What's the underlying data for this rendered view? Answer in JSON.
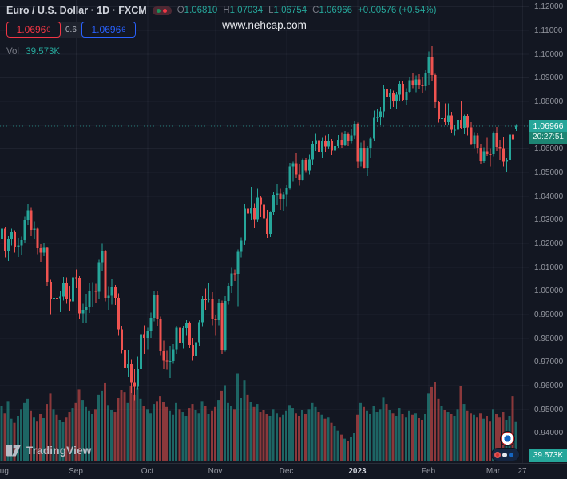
{
  "header": {
    "symbol_title": "Euro / U.S. Dollar · 1D · FXCM",
    "ohlc": {
      "o_label": "O",
      "o": "1.06810",
      "h_label": "H",
      "h": "1.07034",
      "l_label": "L",
      "l": "1.06754",
      "c_label": "C",
      "c": "1.06966",
      "change": "+0.00576 (+0.54%)"
    },
    "sell_price": "1.0696",
    "sell_sup": "0",
    "spread": "0.6",
    "buy_price": "1.0696",
    "buy_sup": "6",
    "vol_label": "Vol",
    "vol_value": "39.573K"
  },
  "watermark": "www.nehcap.com",
  "badges": {
    "last_price": "1.06966",
    "countdown": "20:27:51",
    "volume_axis": "39.573K"
  },
  "logo": {
    "text": "TradingView"
  },
  "axes": {
    "price_labels": [
      "1.12000",
      "1.11000",
      "1.10000",
      "1.09000",
      "1.08000",
      "1.07000",
      "1.06000",
      "1.05000",
      "1.04000",
      "1.03000",
      "1.02000",
      "1.01000",
      "1.00000",
      "0.99000",
      "0.98000",
      "0.97000",
      "0.96000",
      "0.95000",
      "0.94000"
    ],
    "time_labels": [
      {
        "label": "Aug",
        "index": 0
      },
      {
        "label": "Sep",
        "index": 23
      },
      {
        "label": "Oct",
        "index": 45
      },
      {
        "label": "Nov",
        "index": 66
      },
      {
        "label": "Dec",
        "index": 88
      },
      {
        "label": "2023",
        "index": 110,
        "year": true
      },
      {
        "label": "Feb",
        "index": 132
      },
      {
        "label": "Mar",
        "index": 152
      },
      {
        "label": "27",
        "index": 161
      }
    ]
  },
  "chart_data": {
    "type": "candlestick",
    "title": "Euro / U.S. Dollar, 1D, FXCM",
    "x_range": "Aug 2022 - Mar 2023",
    "ylim": [
      0.94,
      1.12
    ],
    "grid": true,
    "colors": {
      "up": "#26a69a",
      "down": "#ef5350",
      "vol_up": "rgba(38,166,154,0.55)",
      "vol_down": "rgba(239,83,80,0.55)",
      "grid": "rgba(240,243,250,0.055)",
      "bg": "#131722",
      "accent_red": "#f23645",
      "accent_blue": "#2962ff"
    },
    "candles": [
      [
        1.022,
        1.029,
        1.015,
        1.0262
      ],
      [
        1.0262,
        1.027,
        1.014,
        1.0165
      ],
      [
        1.0165,
        1.023,
        1.0125,
        1.0216
      ],
      [
        1.0216,
        1.0262,
        1.019,
        1.0246
      ],
      [
        1.0246,
        1.0254,
        1.016,
        1.0183
      ],
      [
        1.0183,
        1.0222,
        1.0142,
        1.0191
      ],
      [
        1.0191,
        1.0228,
        1.015,
        1.0212
      ],
      [
        1.0212,
        1.0312,
        1.0202,
        1.03
      ],
      [
        1.03,
        1.0368,
        1.0276,
        1.0339
      ],
      [
        1.0339,
        1.0352,
        1.023,
        1.0256
      ],
      [
        1.0256,
        1.0292,
        1.022,
        1.0261
      ],
      [
        1.0261,
        1.0268,
        1.0154,
        1.0178
      ],
      [
        1.0178,
        1.0195,
        1.0121,
        1.016
      ],
      [
        1.016,
        1.0203,
        1.0145,
        1.0181
      ],
      [
        1.0181,
        1.0184,
        1.002,
        1.0037
      ],
      [
        1.0037,
        1.0046,
        0.99,
        0.9963
      ],
      [
        0.9963,
        1.0018,
        0.9925,
        0.997
      ],
      [
        0.997,
        1.009,
        0.9945,
        0.9968
      ],
      [
        0.9968,
        1.0,
        0.991,
        0.9975
      ],
      [
        0.9975,
        1.0058,
        0.9958,
        1.0034
      ],
      [
        1.0034,
        1.0055,
        0.9945,
        0.9966
      ],
      [
        0.9966,
        1.002,
        0.9912,
        0.9954
      ],
      [
        0.9954,
        1.0078,
        0.993,
        1.0055
      ],
      [
        1.0055,
        1.009,
        1.001,
        1.0054
      ],
      [
        1.0054,
        1.006,
        0.988,
        0.9904
      ],
      [
        0.9904,
        0.9945,
        0.9863,
        0.992
      ],
      [
        0.992,
        0.9987,
        0.9864,
        0.9929
      ],
      [
        0.9929,
        1.0033,
        0.9905,
        0.9999
      ],
      [
        0.9999,
        1.0035,
        0.993,
        1.0001
      ],
      [
        1.0001,
        1.0029,
        0.995,
        0.9995
      ],
      [
        0.9995,
        1.013,
        0.9965,
        1.012
      ],
      [
        1.012,
        1.0198,
        1.0085,
        1.0167
      ],
      [
        1.0167,
        1.0172,
        0.9955,
        0.997
      ],
      [
        0.997,
        1.0018,
        0.992,
        0.9979
      ],
      [
        0.9979,
        1.005,
        0.9942,
        1.0016
      ],
      [
        1.0016,
        1.0023,
        0.994,
        0.9969
      ],
      [
        0.9969,
        0.9988,
        0.981,
        0.9836
      ],
      [
        0.9836,
        0.9852,
        0.9735,
        0.975
      ],
      [
        0.975,
        0.977,
        0.965,
        0.9673
      ],
      [
        0.9673,
        0.975,
        0.9637,
        0.969
      ],
      [
        0.969,
        0.9709,
        0.9568,
        0.9611
      ],
      [
        0.9611,
        0.967,
        0.9536,
        0.9594
      ],
      [
        0.9594,
        0.9722,
        0.9584,
        0.967
      ],
      [
        0.967,
        0.9854,
        0.9633,
        0.9817
      ],
      [
        0.9817,
        0.9853,
        0.973,
        0.9802
      ],
      [
        0.9802,
        0.9844,
        0.9752,
        0.9829
      ],
      [
        0.9829,
        0.9908,
        0.98,
        0.9885
      ],
      [
        0.9885,
        1.0,
        0.987,
        0.9984
      ],
      [
        0.9984,
        0.9999,
        0.9852,
        0.9881
      ],
      [
        0.9881,
        0.989,
        0.9726,
        0.9744
      ],
      [
        0.9744,
        0.979,
        0.967,
        0.9706
      ],
      [
        0.9706,
        0.9745,
        0.9668,
        0.9702
      ],
      [
        0.9702,
        0.9768,
        0.9632,
        0.9704
      ],
      [
        0.9704,
        0.9775,
        0.9692,
        0.9753
      ],
      [
        0.9753,
        0.9852,
        0.9731,
        0.9843
      ],
      [
        0.9843,
        0.9875,
        0.9755,
        0.9778
      ],
      [
        0.9778,
        0.9852,
        0.9756,
        0.9841
      ],
      [
        0.9841,
        0.9876,
        0.9809,
        0.9863
      ],
      [
        0.9863,
        0.987,
        0.9758,
        0.9771
      ],
      [
        0.9771,
        0.98,
        0.9705,
        0.9724
      ],
      [
        0.9724,
        0.979,
        0.9711,
        0.978
      ],
      [
        0.978,
        0.9875,
        0.9765,
        0.9867
      ],
      [
        0.9867,
        0.9976,
        0.985,
        0.9963
      ],
      [
        0.9963,
        1.0009,
        0.992,
        0.9961
      ],
      [
        0.9961,
        1.0034,
        0.9952,
        0.9965
      ],
      [
        0.9965,
        0.9994,
        0.9853,
        0.9882
      ],
      [
        0.9882,
        0.9899,
        0.981,
        0.9876
      ],
      [
        0.9876,
        0.9965,
        0.9853,
        0.995
      ],
      [
        0.995,
        0.9958,
        0.973,
        0.9748
      ],
      [
        0.9748,
        0.9976,
        0.9742,
        0.9957
      ],
      [
        0.9957,
        1.0034,
        0.9942,
        1.002
      ],
      [
        1.002,
        1.0096,
        0.999,
        1.0073
      ],
      [
        1.0073,
        1.009,
        1.004,
        1.0071
      ],
      [
        1.0071,
        1.0174,
        0.9935,
        1.0163
      ],
      [
        1.0163,
        1.0225,
        1.014,
        1.021
      ],
      [
        1.021,
        1.0364,
        1.0192,
        1.0346
      ],
      [
        1.0346,
        1.0368,
        1.027,
        1.0325
      ],
      [
        1.0325,
        1.0438,
        1.03,
        1.035
      ],
      [
        1.035,
        1.037,
        1.0264,
        1.0302
      ],
      [
        1.0302,
        1.043,
        1.029,
        1.0393
      ],
      [
        1.0393,
        1.04,
        1.031,
        1.0362
      ],
      [
        1.0362,
        1.039,
        1.0298,
        1.0305
      ],
      [
        1.0305,
        1.034,
        1.0222,
        1.0239
      ],
      [
        1.0239,
        1.0335,
        1.0226,
        1.033
      ],
      [
        1.033,
        1.0415,
        1.032,
        1.0404
      ],
      [
        1.0404,
        1.0448,
        1.036,
        1.041
      ],
      [
        1.041,
        1.043,
        1.034,
        1.0388
      ],
      [
        1.0388,
        1.0415,
        1.0338,
        1.0406
      ],
      [
        1.0406,
        1.0445,
        1.0355,
        1.0435
      ],
      [
        1.0435,
        1.0539,
        1.0427,
        1.0525
      ],
      [
        1.0525,
        1.0545,
        1.046,
        1.0537
      ],
      [
        1.0537,
        1.058,
        1.0475,
        1.049
      ],
      [
        1.049,
        1.0535,
        1.0443,
        1.0469
      ],
      [
        1.0469,
        1.0558,
        1.0464,
        1.0551
      ],
      [
        1.0551,
        1.056,
        1.0498,
        1.0507
      ],
      [
        1.0507,
        1.0575,
        1.049,
        1.0555
      ],
      [
        1.0555,
        1.063,
        1.053,
        1.062
      ],
      [
        1.062,
        1.0662,
        1.059,
        1.0635
      ],
      [
        1.0635,
        1.0653,
        1.0575,
        1.0583
      ],
      [
        1.0583,
        1.0645,
        1.056,
        1.0632
      ],
      [
        1.0632,
        1.0655,
        1.0585,
        1.0608
      ],
      [
        1.0608,
        1.066,
        1.0596,
        1.0633
      ],
      [
        1.0633,
        1.064,
        1.0573,
        1.0592
      ],
      [
        1.0592,
        1.0625,
        1.0575,
        1.061
      ],
      [
        1.061,
        1.0658,
        1.0602,
        1.0637
      ],
      [
        1.0637,
        1.067,
        1.0604,
        1.0613
      ],
      [
        1.0613,
        1.0674,
        1.061,
        1.0661
      ],
      [
        1.0661,
        1.067,
        1.061,
        1.063
      ],
      [
        1.063,
        1.0682,
        1.0622,
        1.0655
      ],
      [
        1.0655,
        1.0715,
        1.064,
        1.0705
      ],
      [
        1.0705,
        1.071,
        1.0519,
        1.0545
      ],
      [
        1.0545,
        1.0625,
        1.0525,
        1.0603
      ],
      [
        1.0603,
        1.0635,
        1.0515,
        1.052
      ],
      [
        1.052,
        1.061,
        1.0483,
        1.0601
      ],
      [
        1.0601,
        1.065,
        1.056,
        1.0643
      ],
      [
        1.0643,
        1.076,
        1.0632,
        1.073
      ],
      [
        1.073,
        1.0768,
        1.0711,
        1.0734
      ],
      [
        1.0734,
        1.0775,
        1.0698,
        1.0756
      ],
      [
        1.0756,
        1.0868,
        1.073,
        1.0853
      ],
      [
        1.0853,
        1.0873,
        1.078,
        1.0818
      ],
      [
        1.0818,
        1.085,
        1.0765,
        1.0832
      ],
      [
        1.0832,
        1.0845,
        1.0775,
        1.0799
      ],
      [
        1.0799,
        1.084,
        1.0766,
        1.0828
      ],
      [
        1.0828,
        1.0887,
        1.08,
        1.0873
      ],
      [
        1.0873,
        1.0885,
        1.08,
        1.0805
      ],
      [
        1.0805,
        1.0855,
        1.0785,
        1.084
      ],
      [
        1.084,
        1.09,
        1.0835,
        1.0889
      ],
      [
        1.0889,
        1.092,
        1.0855,
        1.0867
      ],
      [
        1.0867,
        1.0909,
        1.0838,
        1.0891
      ],
      [
        1.0891,
        1.0913,
        1.085,
        1.0868
      ],
      [
        1.0868,
        1.09,
        1.0835,
        1.0863
      ],
      [
        1.0863,
        1.093,
        1.0845,
        1.0921
      ],
      [
        1.0921,
        1.101,
        1.087,
        1.0988
      ],
      [
        1.0988,
        1.1033,
        1.0885,
        1.091
      ],
      [
        1.091,
        1.0915,
        1.0772,
        1.0795
      ],
      [
        1.0795,
        1.08,
        1.0709,
        1.0725
      ],
      [
        1.0725,
        1.0765,
        1.067,
        1.0728
      ],
      [
        1.0728,
        1.079,
        1.07,
        1.0711
      ],
      [
        1.0711,
        1.0791,
        1.0698,
        1.074
      ],
      [
        1.074,
        1.0755,
        1.0666,
        1.0679
      ],
      [
        1.0679,
        1.07,
        1.0656,
        1.068
      ],
      [
        1.068,
        1.0737,
        1.0655,
        1.0721
      ],
      [
        1.0721,
        1.08,
        1.0685,
        1.0688
      ],
      [
        1.0688,
        1.0744,
        1.066,
        1.0738
      ],
      [
        1.0738,
        1.0745,
        1.0655,
        1.069
      ],
      [
        1.069,
        1.0712,
        1.0613,
        1.062
      ],
      [
        1.062,
        1.067,
        1.0598,
        1.0655
      ],
      [
        1.0655,
        1.0665,
        1.0578,
        1.06
      ],
      [
        1.06,
        1.062,
        1.0533,
        1.0547
      ],
      [
        1.0547,
        1.0605,
        1.054,
        1.0589
      ],
      [
        1.0589,
        1.0645,
        1.057,
        1.0577
      ],
      [
        1.0577,
        1.0598,
        1.0525,
        1.0576
      ],
      [
        1.0576,
        1.0673,
        1.0565,
        1.0667
      ],
      [
        1.0667,
        1.0691,
        1.059,
        1.0607
      ],
      [
        1.0607,
        1.0637,
        1.055,
        1.0598
      ],
      [
        1.0598,
        1.0648,
        1.0524,
        1.0545
      ],
      [
        1.0545,
        1.056,
        1.05,
        1.0552
      ],
      [
        1.0552,
        1.07,
        1.0538,
        1.0659
      ],
      [
        1.0659,
        1.0678,
        1.0621,
        1.0639
      ],
      [
        1.0681,
        1.0703,
        1.0675,
        1.0697
      ]
    ],
    "volumes_k": [
      55,
      48,
      60,
      42,
      38,
      45,
      52,
      58,
      62,
      50,
      44,
      40,
      47,
      43,
      57,
      68,
      52,
      46,
      41,
      39,
      44,
      49,
      53,
      58,
      72,
      61,
      54,
      50,
      47,
      52,
      66,
      70,
      78,
      56,
      51,
      49,
      63,
      71,
      69,
      58,
      75,
      66,
      73,
      62,
      55,
      52,
      48,
      57,
      60,
      65,
      59,
      54,
      50,
      46,
      58,
      52,
      49,
      45,
      53,
      57,
      51,
      48,
      60,
      55,
      47,
      50,
      54,
      61,
      70,
      76,
      58,
      55,
      52,
      88,
      63,
      81,
      66,
      59,
      54,
      57,
      49,
      51,
      47,
      45,
      52,
      48,
      44,
      46,
      50,
      56,
      53,
      48,
      45,
      51,
      47,
      52,
      58,
      54,
      49,
      46,
      42,
      44,
      38,
      35,
      30,
      26,
      22,
      20,
      24,
      28,
      46,
      58,
      54,
      50,
      47,
      55,
      49,
      52,
      64,
      57,
      51,
      48,
      45,
      53,
      47,
      44,
      50,
      46,
      48,
      43,
      41,
      47,
      68,
      74,
      79,
      62,
      55,
      51,
      49,
      47,
      45,
      52,
      75,
      57,
      50,
      48,
      46,
      44,
      48,
      42,
      45,
      40,
      52,
      47,
      44,
      49,
      41,
      45,
      65,
      39.573
    ]
  }
}
